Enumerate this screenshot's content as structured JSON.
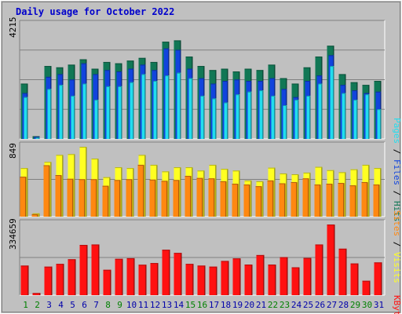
{
  "title": "Daily usage for October 2022",
  "colors": {
    "background": "#c0c0c0",
    "title": "#0000cc",
    "hits": "#117755",
    "files": "#1144dd",
    "pages": "#22ddee",
    "visits": "#ffff22",
    "sites": "#ff8811",
    "kbytes": "#ff1111",
    "gridline": "#808080",
    "weekend_label": "#008000",
    "weekday_label": "#0000aa"
  },
  "chart_data": [
    {
      "type": "bar",
      "name": "hits-files-pages",
      "y_max_label": "4215",
      "ylim": [
        0,
        4215
      ],
      "legend": [
        "Pages",
        "Files",
        "Hits"
      ],
      "series": [
        {
          "name": "Hits",
          "values": [
            2050,
            100,
            2700,
            2650,
            2750,
            2950,
            2600,
            2850,
            2800,
            2900,
            3000,
            2850,
            3600,
            3650,
            3050,
            2700,
            2550,
            2600,
            2500,
            2600,
            2550,
            2750,
            2250,
            2050,
            2650,
            3050,
            3450,
            2400,
            2100,
            2000,
            2150
          ]
        },
        {
          "name": "Files",
          "values": [
            1700,
            80,
            2300,
            2400,
            2200,
            2800,
            2400,
            2550,
            2500,
            2600,
            2750,
            2550,
            3350,
            3300,
            2600,
            2250,
            2050,
            2150,
            2200,
            2150,
            2150,
            2250,
            1850,
            1550,
            2150,
            2350,
            3100,
            2000,
            1800,
            1700,
            1750
          ]
        },
        {
          "name": "Pages",
          "values": [
            1550,
            50,
            1850,
            2000,
            1600,
            2050,
            1450,
            1950,
            1950,
            2100,
            2400,
            2150,
            2350,
            2450,
            2250,
            1600,
            1500,
            1350,
            1650,
            1750,
            1800,
            1600,
            1250,
            1450,
            1600,
            2050,
            2700,
            1700,
            1450,
            1650,
            1100
          ]
        }
      ]
    },
    {
      "type": "bar",
      "name": "visits-sites",
      "y_max_label": "849",
      "ylim": [
        0,
        849
      ],
      "legend": [
        "Sites",
        "Visits"
      ],
      "series": [
        {
          "name": "Visits",
          "values": [
            590,
            40,
            665,
            750,
            760,
            849,
            705,
            480,
            600,
            590,
            750,
            630,
            550,
            600,
            600,
            560,
            630,
            580,
            560,
            440,
            430,
            595,
            525,
            515,
            535,
            605,
            565,
            540,
            575,
            630,
            590
          ]
        },
        {
          "name": "Sites",
          "values": [
            485,
            30,
            625,
            505,
            460,
            455,
            455,
            375,
            445,
            455,
            630,
            450,
            435,
            445,
            495,
            470,
            465,
            430,
            400,
            390,
            370,
            440,
            405,
            420,
            465,
            390,
            400,
            410,
            380,
            420,
            390
          ]
        }
      ]
    },
    {
      "type": "bar",
      "name": "kbytes",
      "y_max_label": "334659",
      "ylim": [
        0,
        334659
      ],
      "legend": [
        "KBytes"
      ],
      "series": [
        {
          "name": "KBytes",
          "values": [
            140000,
            10000,
            135000,
            148000,
            170000,
            238000,
            240000,
            120000,
            172000,
            175000,
            144000,
            152000,
            215000,
            200000,
            148000,
            140000,
            135000,
            162000,
            174000,
            145000,
            190000,
            145000,
            180000,
            132000,
            176000,
            240000,
            334659,
            220000,
            150000,
            68000,
            155000
          ]
        }
      ]
    }
  ],
  "x_axis": {
    "days": [
      "1",
      "2",
      "3",
      "4",
      "5",
      "6",
      "7",
      "8",
      "9",
      "10",
      "11",
      "12",
      "13",
      "14",
      "15",
      "16",
      "17",
      "18",
      "19",
      "20",
      "21",
      "22",
      "23",
      "24",
      "25",
      "26",
      "27",
      "28",
      "29",
      "30",
      "31"
    ],
    "weekend": [
      true,
      true,
      false,
      false,
      false,
      false,
      false,
      true,
      true,
      false,
      false,
      false,
      false,
      false,
      true,
      true,
      false,
      false,
      false,
      false,
      false,
      true,
      true,
      false,
      false,
      false,
      false,
      false,
      true,
      true,
      false
    ]
  }
}
